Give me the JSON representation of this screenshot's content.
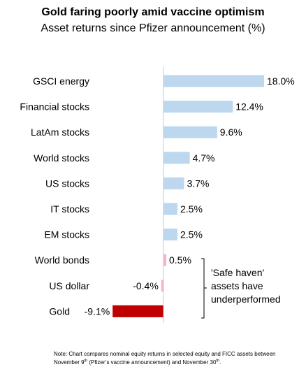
{
  "chart_data": {
    "type": "bar",
    "orientation": "horizontal",
    "title": "Gold faring poorly amid vaccine optimism",
    "subtitle": "Asset returns since Pfizer announcement (%)",
    "categories": [
      "GSCI energy",
      "Financial stocks",
      "LatAm stocks",
      "World stocks",
      "US stocks",
      "IT stocks",
      "EM stocks",
      "World bonds",
      "US dollar",
      "Gold"
    ],
    "values": [
      18.0,
      12.4,
      9.6,
      4.7,
      3.7,
      2.5,
      2.5,
      0.5,
      -0.4,
      -9.1
    ],
    "value_labels": [
      "18.0%",
      "12.4%",
      "9.6%",
      "4.7%",
      "3.7%",
      "2.5%",
      "2.5%",
      "0.5%",
      "-0.4%",
      "-9.1%"
    ],
    "xlim": [
      -10,
      20
    ],
    "grid": false,
    "colors": {
      "equity": "#bdd7ee",
      "safe_haven": "#f4b6c2",
      "gold": "#c00000",
      "axis": "#c8c8c8"
    },
    "bar_groups": [
      "equity",
      "equity",
      "equity",
      "equity",
      "equity",
      "equity",
      "equity",
      "safe_haven",
      "safe_haven",
      "gold"
    ]
  },
  "annotation": {
    "lines": [
      "'Safe haven'",
      "assets have",
      "underperformed"
    ]
  },
  "note": {
    "part1": "Note: Chart compares nominal equity returns in selected equity and FICC assets between November 9",
    "sup1": "th",
    "part2": " (Pfizer’s vaccine announcement) and November 30",
    "sup2": "th",
    "part3": "."
  }
}
